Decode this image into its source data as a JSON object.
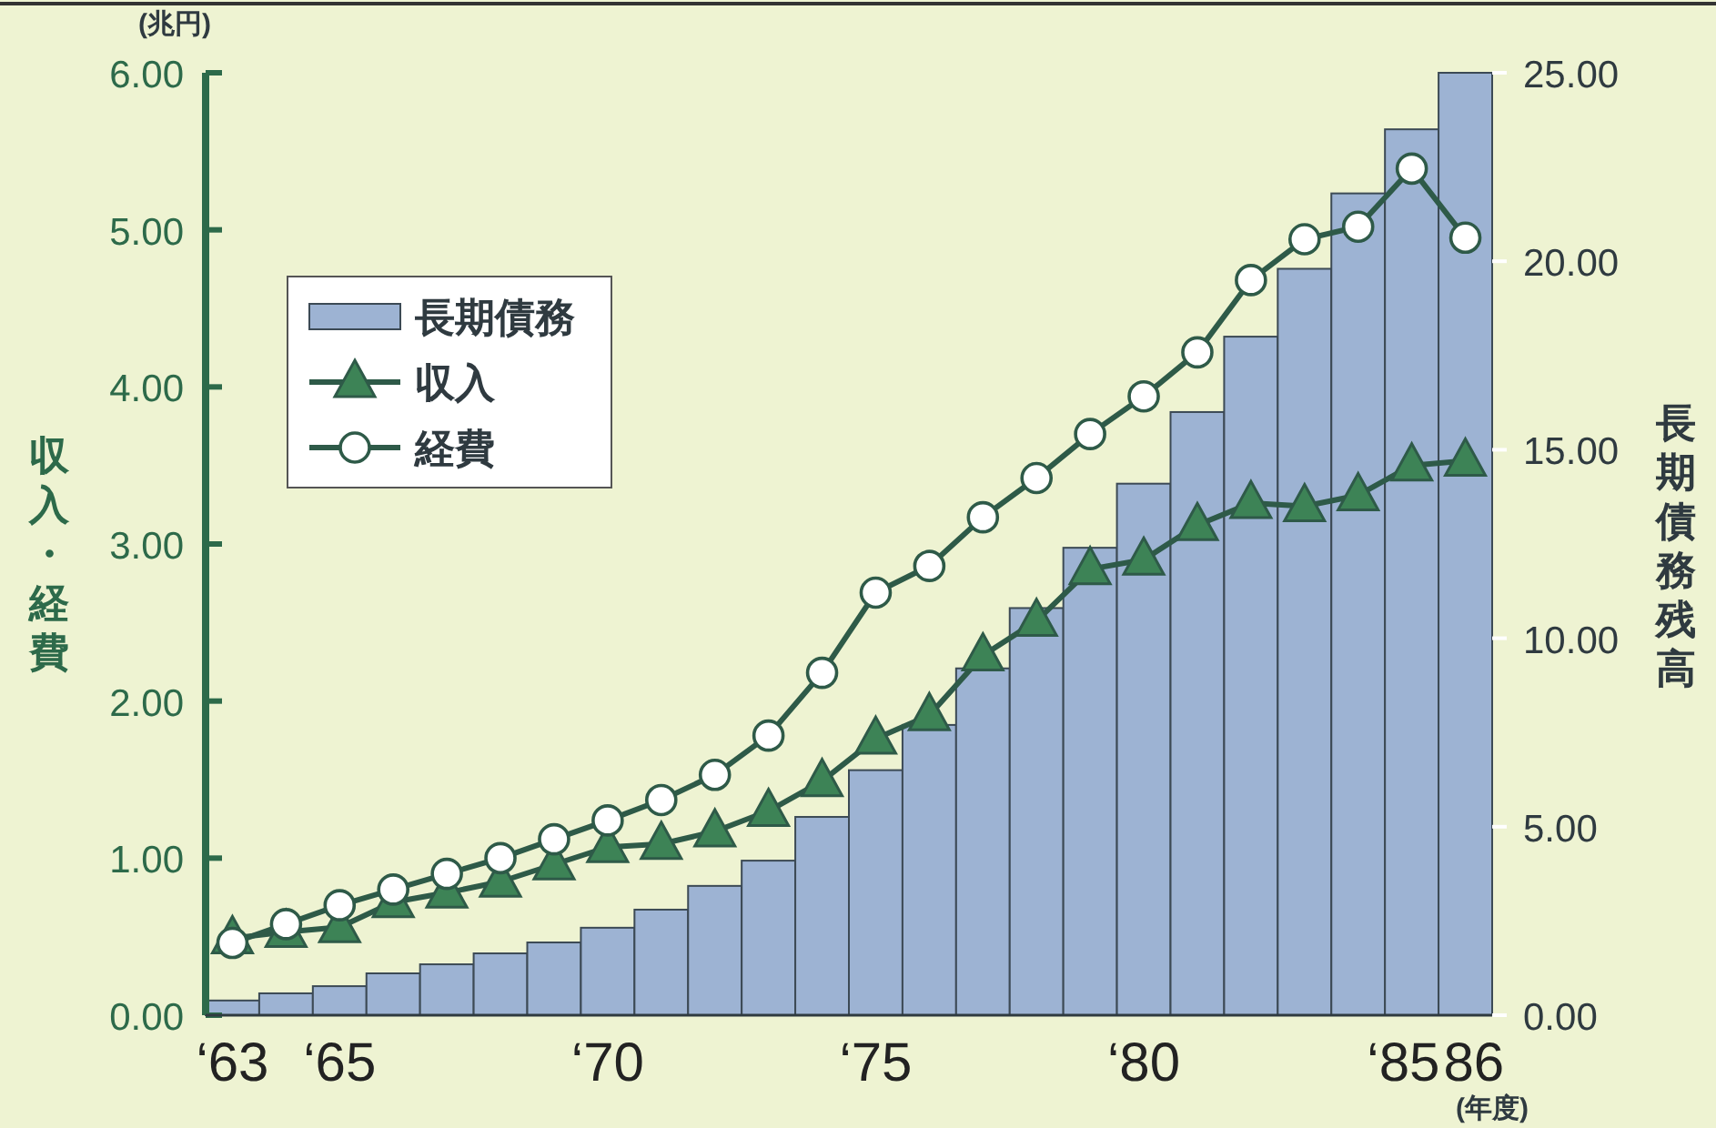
{
  "chart_data": {
    "type": "bar",
    "ylabel": "収入・経費",
    "y2label": "長期債務残高",
    "annotations": [
      "(兆円)",
      "(年度)"
    ],
    "categories": [
      "‘63",
      null,
      "‘65",
      null,
      null,
      null,
      null,
      "‘70",
      null,
      null,
      null,
      null,
      "‘75",
      null,
      null,
      null,
      null,
      "‘80",
      null,
      null,
      null,
      null,
      "‘85",
      "86"
    ],
    "series": [
      {
        "name": "長期債務",
        "axis": "y2",
        "color": "#9db3d3",
        "values": [
          0.39,
          0.58,
          0.77,
          1.11,
          1.35,
          1.64,
          1.93,
          2.32,
          2.8,
          3.43,
          4.1,
          5.26,
          6.5,
          7.7,
          9.2,
          10.8,
          12.4,
          14.1,
          16.0,
          18.0,
          19.8,
          21.8,
          23.5,
          25.0
        ]
      },
      {
        "name": "収入",
        "type": "line",
        "marker": "triangle",
        "color": "#2e5a48",
        "values": [
          0.49,
          0.53,
          0.56,
          0.72,
          0.78,
          0.85,
          0.96,
          1.07,
          1.09,
          1.17,
          1.3,
          1.49,
          1.76,
          1.91,
          2.29,
          2.51,
          2.84,
          2.9,
          3.12,
          3.26,
          3.24,
          3.31,
          3.5,
          3.53
        ]
      },
      {
        "name": "経費",
        "type": "line",
        "marker": "circle",
        "color": "#2e5a48",
        "values": [
          0.46,
          0.58,
          0.7,
          0.8,
          0.9,
          1.0,
          1.12,
          1.24,
          1.37,
          1.53,
          1.78,
          2.18,
          2.69,
          2.86,
          3.17,
          3.42,
          3.7,
          3.94,
          4.22,
          4.68,
          4.94,
          5.02,
          5.39,
          4.95
        ]
      }
    ],
    "ylim": [
      0,
      6
    ],
    "yticks": [
      {
        "value": 0,
        "label": "0.00"
      },
      {
        "value": 1,
        "label": "1.00"
      },
      {
        "value": 2,
        "label": "2.00"
      },
      {
        "value": 3,
        "label": "3.00"
      },
      {
        "value": 4,
        "label": "4.00"
      },
      {
        "value": 5,
        "label": "5.00"
      },
      {
        "value": 6,
        "label": "6.00"
      }
    ],
    "y2lim": [
      0,
      25
    ],
    "y2ticks": [
      {
        "value": 0,
        "label": "0.00"
      },
      {
        "value": 5,
        "label": "5.00"
      },
      {
        "value": 10,
        "label": "10.00"
      },
      {
        "value": 15,
        "label": "15.00"
      },
      {
        "value": 20,
        "label": "20.00"
      },
      {
        "value": 25,
        "label": "25.00"
      }
    ],
    "legend": "top left",
    "grid": false
  }
}
